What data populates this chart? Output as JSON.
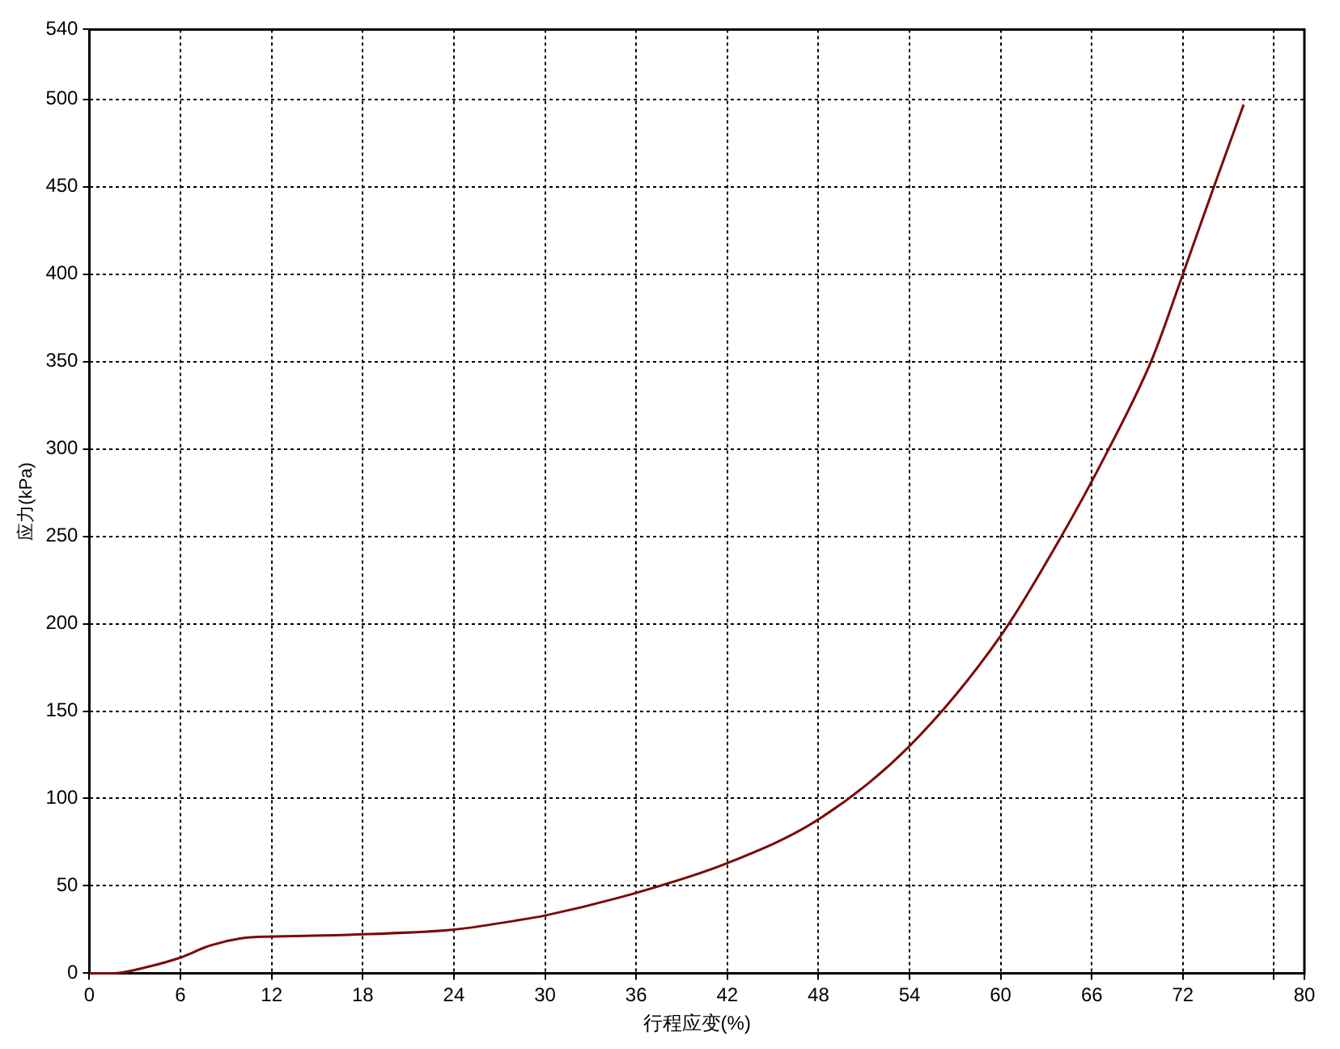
{
  "chart_data": {
    "type": "line",
    "xlabel": "行程应变(%)",
    "ylabel": "应力(kPa)",
    "x": [
      0,
      1.6,
      4,
      6,
      8,
      10,
      12,
      17,
      24,
      28,
      30,
      36,
      42,
      48,
      54,
      60,
      64,
      67,
      70,
      72,
      74,
      76
    ],
    "series": [
      {
        "color": "#7b0a0a",
        "values": [
          0,
          0,
          4,
          9,
          16,
          20,
          21,
          22,
          25,
          30,
          33,
          46,
          63,
          88,
          130,
          193,
          250,
          298,
          352,
          400,
          449,
          497
        ]
      }
    ],
    "xlim": [
      0,
      80
    ],
    "xticks": [
      0,
      6,
      12,
      18,
      24,
      30,
      36,
      42,
      48,
      54,
      60,
      66,
      72,
      {
        "value": 78,
        "label": null
      },
      80
    ],
    "ylim": [
      0,
      540
    ],
    "yticks": [
      0,
      50,
      100,
      150,
      200,
      250,
      300,
      350,
      400,
      450,
      500,
      540
    ],
    "grid": true,
    "legend": false,
    "marker": "none",
    "line_style": "solid"
  }
}
